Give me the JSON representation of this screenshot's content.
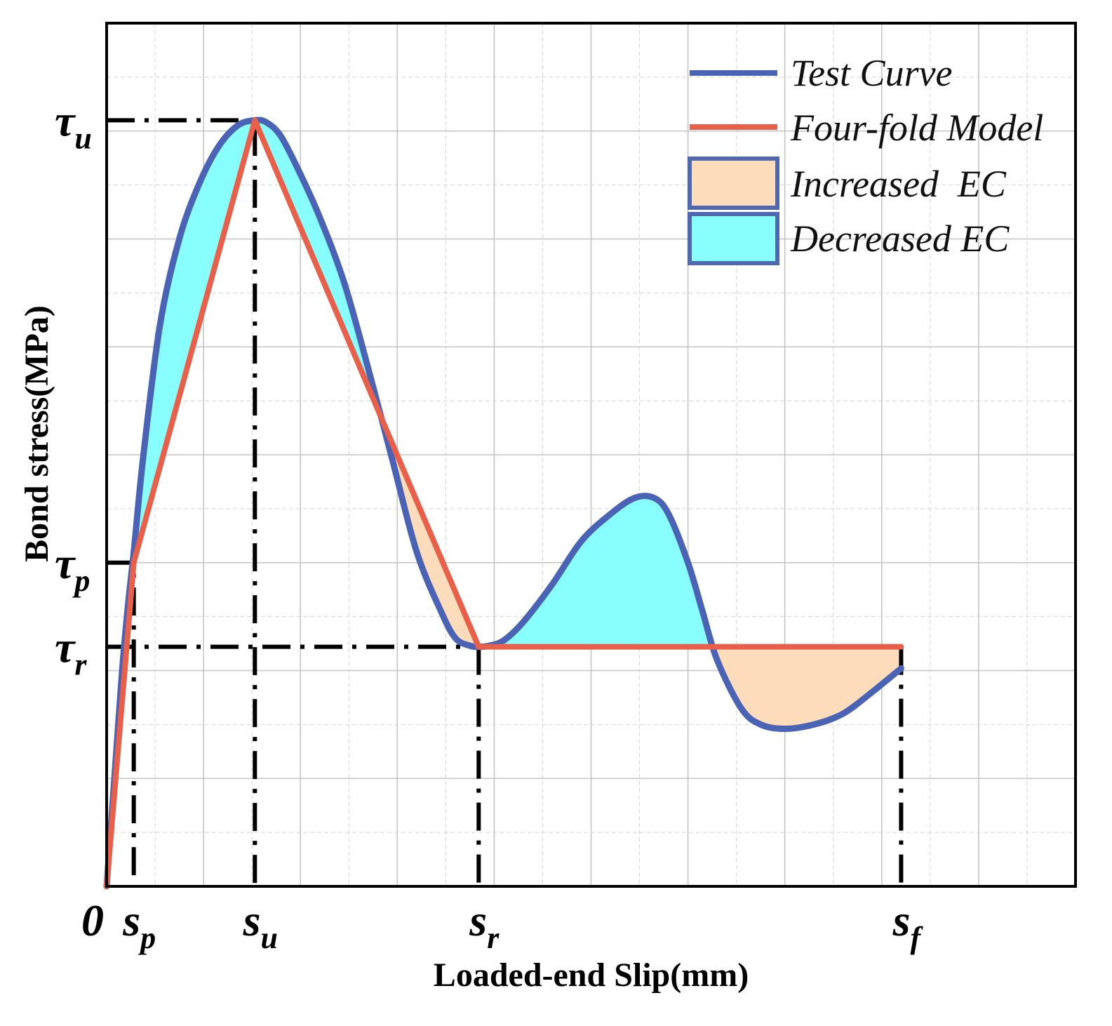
{
  "chart_data": {
    "type": "line",
    "title": "",
    "xlabel": "Loaded-end Slip(mm)",
    "ylabel": "Bond stress(MPa)",
    "xlim": [
      0,
      10
    ],
    "ylim": [
      0,
      8
    ],
    "grid": true,
    "legend_position": "top-right",
    "x_ticks": [
      {
        "id": "origin",
        "label": "0",
        "sub": "",
        "x": 0
      },
      {
        "id": "sp",
        "label": "s",
        "sub": "p",
        "x": 0.28
      },
      {
        "id": "su",
        "label": "s",
        "sub": "u",
        "x": 1.53
      },
      {
        "id": "sr",
        "label": "s",
        "sub": "r",
        "x": 3.84
      },
      {
        "id": "sf",
        "label": "s",
        "sub": "f",
        "x": 8.2
      }
    ],
    "y_ticks": [
      {
        "id": "tu",
        "label": "τ",
        "sub": "u",
        "y": 7.1
      },
      {
        "id": "tp",
        "label": "τ",
        "sub": "p",
        "y": 3.0
      },
      {
        "id": "tr",
        "label": "τ",
        "sub": "r",
        "y": 2.22
      }
    ],
    "series": [
      {
        "name": "Test Curve",
        "color": "#4a63b5",
        "x": [
          0,
          0.08,
          0.16,
          0.22,
          0.28,
          0.38,
          0.55,
          0.75,
          0.95,
          1.15,
          1.35,
          1.53,
          1.65,
          1.8,
          2.0,
          2.2,
          2.45,
          2.7,
          2.95,
          3.2,
          3.45,
          3.6,
          3.75,
          3.84,
          3.95,
          4.1,
          4.3,
          4.6,
          4.9,
          5.2,
          5.45,
          5.65,
          5.8,
          6.0,
          6.15,
          6.3,
          6.55,
          6.75,
          7.0,
          7.3,
          7.6,
          7.9,
          8.2
        ],
        "y": [
          0,
          1.0,
          2.0,
          2.6,
          3.1,
          4.0,
          5.2,
          6.0,
          6.5,
          6.85,
          7.05,
          7.1,
          7.08,
          6.95,
          6.6,
          6.2,
          5.6,
          4.8,
          3.95,
          3.1,
          2.55,
          2.3,
          2.23,
          2.22,
          2.23,
          2.28,
          2.45,
          2.8,
          3.2,
          3.45,
          3.6,
          3.6,
          3.45,
          3.0,
          2.55,
          2.1,
          1.65,
          1.5,
          1.46,
          1.5,
          1.6,
          1.8,
          2.02
        ]
      },
      {
        "name": "Four-fold Model",
        "color": "#e8604a",
        "x": [
          0,
          0.28,
          1.53,
          3.84,
          8.2
        ],
        "y": [
          0,
          3.0,
          7.1,
          2.22,
          2.22
        ]
      }
    ],
    "fills": [
      {
        "name": "Increased  EC",
        "color": "#fddcbb",
        "meaning": "model above test curve"
      },
      {
        "name": "Decreased EC",
        "color": "#88fffd",
        "meaning": "test curve above model"
      }
    ]
  }
}
